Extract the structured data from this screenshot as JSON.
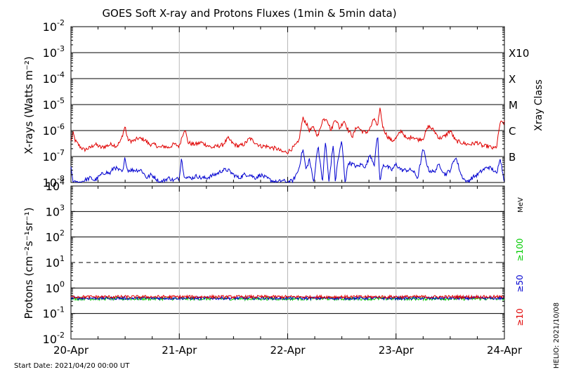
{
  "chart_data": [
    {
      "type": "line",
      "title": "GOES Soft X-ray and Protons Fluxes   (1min & 5min data)",
      "ylabel": "X-rays (Watts m⁻²)",
      "yscale": "log",
      "ylim": [
        1e-08,
        0.01
      ],
      "yticks": [
        {
          "base": "10",
          "exp": "-8"
        },
        {
          "base": "10",
          "exp": "-7"
        },
        {
          "base": "10",
          "exp": "-6"
        },
        {
          "base": "10",
          "exp": "-5"
        },
        {
          "base": "10",
          "exp": "-4"
        },
        {
          "base": "10",
          "exp": "-3"
        },
        {
          "base": "10",
          "exp": "-2"
        }
      ],
      "right_label": "Xray Class",
      "classes": [
        {
          "label": "B",
          "level": 1e-07
        },
        {
          "label": "C",
          "level": 1e-06
        },
        {
          "label": "M",
          "level": 1e-05
        },
        {
          "label": "X",
          "level": 0.0001
        },
        {
          "label": "X10",
          "level": 0.001
        }
      ],
      "x_days": [
        0,
        4
      ],
      "series": [
        {
          "color": "#e00000",
          "x": [
            0,
            0.02,
            0.04,
            0.08,
            0.12,
            0.18,
            0.22,
            0.28,
            0.32,
            0.38,
            0.42,
            0.46,
            0.5,
            0.52,
            0.54,
            0.58,
            0.62,
            0.68,
            0.72,
            0.78,
            0.82,
            0.86,
            0.9,
            0.95,
            1.0,
            1.02,
            1.05,
            1.08,
            1.12,
            1.16,
            1.2,
            1.25,
            1.3,
            1.35,
            1.4,
            1.45,
            1.5,
            1.55,
            1.6,
            1.65,
            1.7,
            1.75,
            1.8,
            1.85,
            1.9,
            1.95,
            2.0,
            2.05,
            2.1,
            2.14,
            2.17,
            2.2,
            2.24,
            2.28,
            2.32,
            2.36,
            2.4,
            2.44,
            2.48,
            2.52,
            2.56,
            2.6,
            2.64,
            2.68,
            2.72,
            2.76,
            2.8,
            2.83,
            2.85,
            2.88,
            2.92,
            2.96,
            3.0,
            3.05,
            3.1,
            3.15,
            3.2,
            3.25,
            3.3,
            3.35,
            3.4,
            3.45,
            3.5,
            3.55,
            3.6,
            3.65,
            3.7,
            3.75,
            3.8,
            3.85,
            3.9,
            3.93,
            3.96,
            4.0
          ],
          "y": [
            4e-07,
            8e-07,
            4e-07,
            2.5e-07,
            1.8e-07,
            2.2e-07,
            3e-07,
            2.2e-07,
            2.5e-07,
            3e-07,
            2.5e-07,
            4e-07,
            1.5e-06,
            5e-07,
            4e-07,
            4e-07,
            5e-07,
            4.5e-07,
            3e-07,
            2.8e-07,
            2.2e-07,
            2.5e-07,
            2.2e-07,
            3e-07,
            2.5e-07,
            5e-07,
            1.2e-06,
            3.5e-07,
            3e-07,
            3e-07,
            3.5e-07,
            2.8e-07,
            2.2e-07,
            2.5e-07,
            2.8e-07,
            5e-07,
            3e-07,
            2.5e-07,
            3e-07,
            5e-07,
            3.5e-07,
            2.5e-07,
            2.5e-07,
            2.2e-07,
            2e-07,
            1.5e-07,
            1.5e-07,
            2.2e-07,
            3.5e-07,
            3e-06,
            2e-06,
            1e-06,
            1.3e-06,
            6e-07,
            2.5e-06,
            3e-06,
            1e-06,
            3e-06,
            1.2e-06,
            2.5e-06,
            1e-06,
            6e-07,
            1.5e-06,
            1e-06,
            8e-07,
            1.2e-06,
            3e-06,
            1.2e-06,
            8e-06,
            1.3e-06,
            6e-07,
            4e-07,
            5e-07,
            1e-06,
            4.5e-07,
            6e-07,
            4.5e-07,
            5e-07,
            1.5e-06,
            1e-06,
            5e-07,
            6e-07,
            1e-06,
            4e-07,
            3.5e-07,
            3e-07,
            3e-07,
            3.5e-07,
            2.5e-07,
            2.5e-07,
            2e-07,
            2.5e-07,
            2e-06,
            2e-06
          ]
        },
        {
          "color": "#0000d0",
          "x": [
            0,
            0.02,
            0.04,
            0.08,
            0.12,
            0.18,
            0.22,
            0.28,
            0.32,
            0.36,
            0.4,
            0.44,
            0.48,
            0.5,
            0.52,
            0.55,
            0.6,
            0.65,
            0.7,
            0.74,
            0.78,
            0.82,
            0.86,
            0.9,
            0.95,
            1.0,
            1.02,
            1.04,
            1.08,
            1.12,
            1.16,
            1.2,
            1.25,
            1.3,
            1.35,
            1.4,
            1.45,
            1.5,
            1.55,
            1.6,
            1.65,
            1.7,
            1.75,
            1.8,
            1.85,
            1.9,
            1.95,
            2.0,
            2.05,
            2.1,
            2.14,
            2.17,
            2.2,
            2.24,
            2.28,
            2.32,
            2.35,
            2.38,
            2.42,
            2.44,
            2.46,
            2.5,
            2.53,
            2.56,
            2.6,
            2.64,
            2.68,
            2.72,
            2.76,
            2.8,
            2.83,
            2.85,
            2.88,
            2.92,
            2.96,
            3.0,
            3.05,
            3.1,
            3.15,
            3.2,
            3.25,
            3.3,
            3.35,
            3.4,
            3.45,
            3.5,
            3.55,
            3.6,
            3.65,
            3.7,
            3.75,
            3.8,
            3.85,
            3.9,
            3.93,
            3.96,
            4.0
          ],
          "y": [
            4e-08,
            1e-08,
            1e-08,
            1e-08,
            1.2e-08,
            1.5e-08,
            1.2e-08,
            2e-08,
            2.5e-08,
            2.2e-08,
            4e-08,
            3e-08,
            2.5e-08,
            1e-07,
            3e-08,
            3e-08,
            3e-08,
            3e-08,
            1.5e-08,
            2e-08,
            1.5e-08,
            1e-08,
            1.2e-08,
            1.5e-08,
            1.2e-08,
            1.5e-08,
            1e-07,
            2e-08,
            1.5e-08,
            1.5e-08,
            1.8e-08,
            1.5e-08,
            1.5e-08,
            1.8e-08,
            2.2e-08,
            3e-08,
            3e-08,
            2e-08,
            1.5e-08,
            2e-08,
            2e-08,
            1.5e-08,
            2e-08,
            1.5e-08,
            1.2e-08,
            1e-08,
            1.2e-08,
            1e-08,
            1.2e-08,
            3e-08,
            2e-07,
            3e-08,
            8e-08,
            1e-08,
            3e-07,
            1e-08,
            4e-07,
            1e-08,
            3e-07,
            1e-08,
            6e-08,
            4e-07,
            1e-08,
            6e-08,
            5e-08,
            4e-08,
            5e-08,
            4e-08,
            1.2e-07,
            5e-08,
            8e-07,
            1e-08,
            5e-08,
            4e-08,
            3e-08,
            5e-08,
            3e-08,
            3e-08,
            3e-08,
            1.5e-08,
            2e-07,
            3e-08,
            2.5e-08,
            5e-08,
            2e-08,
            3e-08,
            1e-07,
            2e-08,
            1e-08,
            1.5e-08,
            2e-08,
            3e-08,
            4e-08,
            3e-08,
            2e-08,
            1e-07,
            1e-08
          ]
        }
      ]
    },
    {
      "type": "line",
      "ylabel": "Protons (cm⁻²s⁻¹sr⁻¹)",
      "yscale": "log",
      "ylim": [
        0.01,
        10000
      ],
      "yticks": [
        {
          "base": "10",
          "exp": "-2"
        },
        {
          "base": "10",
          "exp": "-1"
        },
        {
          "base": "10",
          "exp": "0"
        },
        {
          "base": "10",
          "exp": "1"
        },
        {
          "base": "10",
          "exp": "2"
        },
        {
          "base": "10",
          "exp": "3"
        },
        {
          "base": "10",
          "exp": "4"
        }
      ],
      "threshold": 10,
      "energy_unit": "MeV",
      "energies": [
        {
          "label": "≥100",
          "color": "#00cc00"
        },
        {
          "label": "≥50",
          "color": "#0000d0"
        },
        {
          "label": "≥10",
          "color": "#e00000"
        }
      ],
      "series": [
        {
          "color": "#e00000",
          "x": [
            0,
            4
          ],
          "y": [
            0.45,
            0.45
          ]
        },
        {
          "color": "#0000d0",
          "x": [
            0,
            4
          ],
          "y": [
            0.4,
            0.4
          ]
        },
        {
          "color": "#00cc00",
          "x": [
            0,
            4
          ],
          "y": [
            0.38,
            0.38
          ]
        }
      ]
    }
  ],
  "x_axis": {
    "tick_labels": [
      "20-Apr",
      "21-Apr",
      "22-Apr",
      "23-Apr",
      "24-Apr"
    ]
  },
  "footer": {
    "start_date": "Start Date: 2021/04/20 00:00 UT",
    "credit": "HELIO: 2021/10/08"
  }
}
